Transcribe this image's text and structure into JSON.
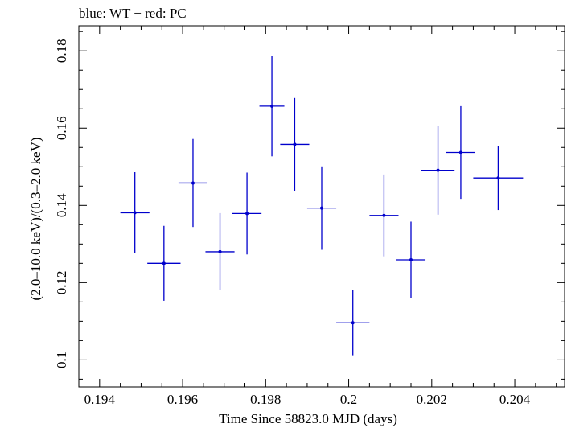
{
  "chart_data": {
    "type": "scatter",
    "title": "blue: WT − red: PC",
    "xlabel": "Time Since 58823.0 MJD (days)",
    "ylabel": "(2.0–10.0 keV)/(0.3–2.0 keV)",
    "xlim": [
      0.1935,
      0.2052
    ],
    "ylim": [
      0.093,
      0.1865
    ],
    "xticks": [
      0.194,
      0.196,
      0.198,
      0.2,
      0.202,
      0.204
    ],
    "xtick_labels": [
      "0.194",
      "0.196",
      "0.198",
      "0.2",
      "0.202",
      "0.204"
    ],
    "yticks": [
      0.1,
      0.12,
      0.14,
      0.16,
      0.18
    ],
    "ytick_labels": [
      "0.1",
      "0.12",
      "0.14",
      "0.16",
      "0.18"
    ],
    "grid": false,
    "series": [
      {
        "color": "#0000cc",
        "points": [
          {
            "x": 0.19485,
            "xerr": 0.00035,
            "y": 0.1381,
            "yerr": 0.0105
          },
          {
            "x": 0.19555,
            "xerr": 0.0004,
            "y": 0.125,
            "yerr": 0.0097
          },
          {
            "x": 0.19625,
            "xerr": 0.00035,
            "y": 0.1458,
            "yerr": 0.0114
          },
          {
            "x": 0.1969,
            "xerr": 0.00035,
            "y": 0.128,
            "yerr": 0.01
          },
          {
            "x": 0.19755,
            "xerr": 0.00035,
            "y": 0.1379,
            "yerr": 0.0106
          },
          {
            "x": 0.19815,
            "xerr": 0.0003,
            "y": 0.1657,
            "yerr": 0.013
          },
          {
            "x": 0.1987,
            "xerr": 0.00035,
            "y": 0.1558,
            "yerr": 0.012
          },
          {
            "x": 0.19935,
            "xerr": 0.00035,
            "y": 0.1393,
            "yerr": 0.0108
          },
          {
            "x": 0.2001,
            "xerr": 0.0004,
            "y": 0.1096,
            "yerr": 0.0084
          },
          {
            "x": 0.20085,
            "xerr": 0.00035,
            "y": 0.1374,
            "yerr": 0.0106
          },
          {
            "x": 0.2015,
            "xerr": 0.00035,
            "y": 0.1259,
            "yerr": 0.0099
          },
          {
            "x": 0.20215,
            "xerr": 0.0004,
            "y": 0.1491,
            "yerr": 0.0115
          },
          {
            "x": 0.2027,
            "xerr": 0.00035,
            "y": 0.1537,
            "yerr": 0.012
          },
          {
            "x": 0.2036,
            "xerr": 0.0006,
            "y": 0.1471,
            "yerr": 0.0083
          }
        ]
      }
    ]
  }
}
